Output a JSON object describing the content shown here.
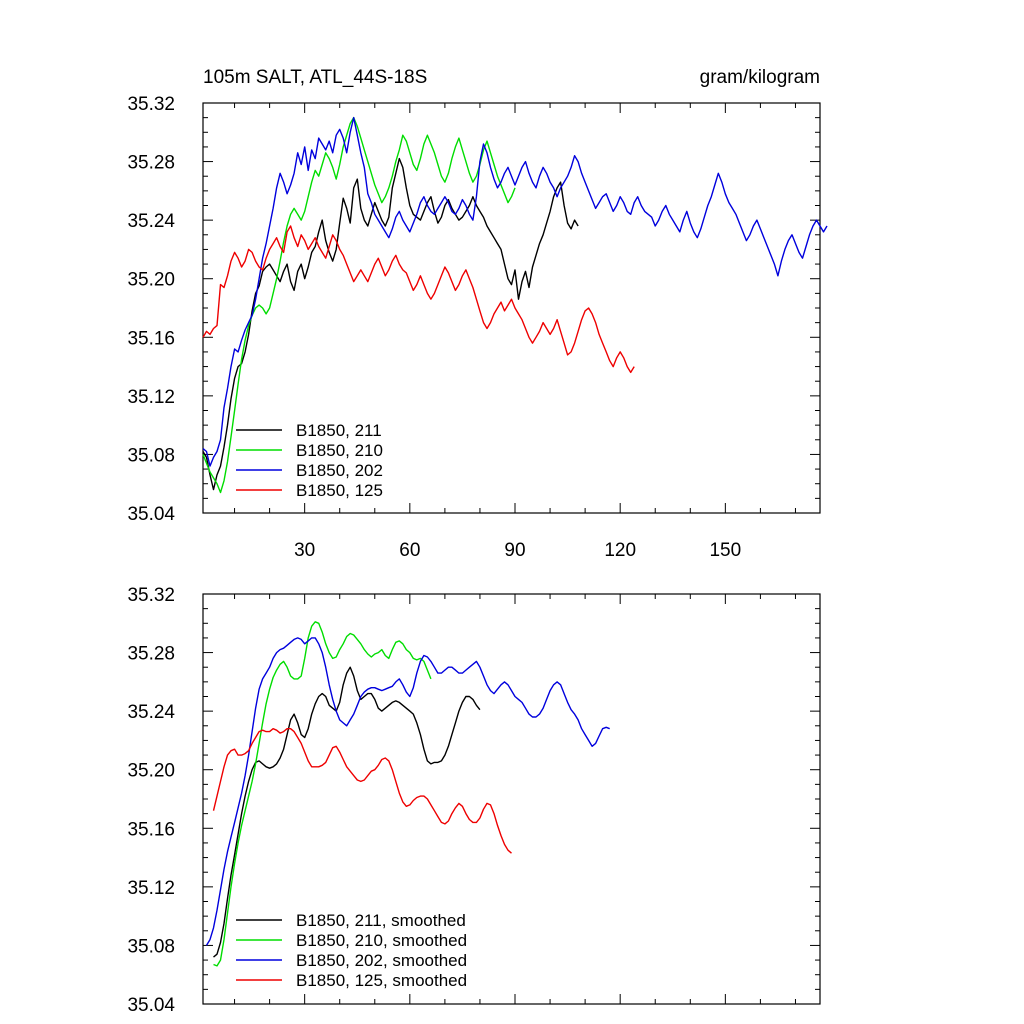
{
  "chart_data": [
    {
      "type": "line",
      "title": "105m SALT, ATL_44S-18S",
      "units": "gram/kilogram",
      "xlim": [
        1,
        177
      ],
      "ylim": [
        35.04,
        35.32
      ],
      "x_ticks": [
        30,
        60,
        90,
        120,
        150
      ],
      "x_tick_labels": [
        "30",
        "60",
        "90",
        "120",
        "150"
      ],
      "y_ticks": [
        35.04,
        35.08,
        35.12,
        35.16,
        35.2,
        35.24,
        35.28,
        35.32
      ],
      "y_tick_labels": [
        "35.04",
        "35.08",
        "35.12",
        "35.16",
        "35.20",
        "35.24",
        "35.28",
        "35.32"
      ],
      "legend_position": "bottom-left",
      "series": [
        {
          "name": "B1850, 211",
          "color": "#000000",
          "x_start": 1,
          "values": [
            35.082,
            35.078,
            35.066,
            35.056,
            35.066,
            35.072,
            35.085,
            35.1,
            35.118,
            35.132,
            35.14,
            35.142,
            35.15,
            35.162,
            35.178,
            35.19,
            35.195,
            35.205,
            35.208,
            35.21,
            35.206,
            35.202,
            35.198,
            35.205,
            35.21,
            35.198,
            35.192,
            35.205,
            35.21,
            35.2,
            35.208,
            35.218,
            35.222,
            35.232,
            35.24,
            35.226,
            35.218,
            35.212,
            35.22,
            35.238,
            35.255,
            35.248,
            35.238,
            35.262,
            35.268,
            35.248,
            35.24,
            35.236,
            35.244,
            35.252,
            35.246,
            35.24,
            35.236,
            35.242,
            35.262,
            35.272,
            35.282,
            35.276,
            35.262,
            35.25,
            35.244,
            35.242,
            35.24,
            35.246,
            35.252,
            35.256,
            35.246,
            35.238,
            35.242,
            35.25,
            35.254,
            35.248,
            35.244,
            35.24,
            35.242,
            35.246,
            35.25,
            35.256,
            35.25,
            35.246,
            35.242,
            35.236,
            35.232,
            35.228,
            35.224,
            35.22,
            35.21,
            35.2,
            35.196,
            35.206,
            35.186,
            35.198,
            35.205,
            35.194,
            35.208,
            35.216,
            35.224,
            35.23,
            35.238,
            35.246,
            35.256,
            35.262,
            35.266,
            35.25,
            35.238,
            35.234,
            35.24,
            35.236
          ]
        },
        {
          "name": "B1850, 210",
          "color": "#00dd00",
          "x_start": 1,
          "values": [
            35.08,
            35.074,
            35.068,
            35.064,
            35.06,
            35.054,
            35.062,
            35.075,
            35.092,
            35.11,
            35.128,
            35.145,
            35.158,
            35.168,
            35.175,
            35.18,
            35.182,
            35.18,
            35.176,
            35.18,
            35.19,
            35.2,
            35.212,
            35.225,
            35.236,
            35.244,
            35.248,
            35.244,
            35.24,
            35.246,
            35.256,
            35.266,
            35.274,
            35.27,
            35.278,
            35.286,
            35.282,
            35.276,
            35.268,
            35.278,
            35.29,
            35.298,
            35.306,
            35.31,
            35.304,
            35.296,
            35.288,
            35.28,
            35.272,
            35.264,
            35.258,
            35.252,
            35.256,
            35.262,
            35.27,
            35.28,
            35.288,
            35.298,
            35.294,
            35.286,
            35.278,
            35.274,
            35.282,
            35.292,
            35.298,
            35.292,
            35.286,
            35.278,
            35.27,
            35.266,
            35.272,
            35.282,
            35.29,
            35.296,
            35.288,
            35.28,
            35.272,
            35.266,
            35.27,
            35.278,
            35.288,
            35.294,
            35.286,
            35.278,
            35.27,
            35.264,
            35.258,
            35.252,
            35.256,
            35.262
          ]
        },
        {
          "name": "B1850, 202",
          "color": "#0000dd",
          "x_start": 1,
          "values": [
            35.084,
            35.082,
            35.072,
            35.078,
            35.082,
            35.09,
            35.112,
            35.125,
            35.14,
            35.152,
            35.15,
            35.158,
            35.165,
            35.17,
            35.175,
            35.186,
            35.2,
            35.214,
            35.224,
            35.236,
            35.248,
            35.262,
            35.272,
            35.266,
            35.258,
            35.264,
            35.272,
            35.286,
            35.278,
            35.29,
            35.274,
            35.288,
            35.282,
            35.296,
            35.292,
            35.288,
            35.294,
            35.286,
            35.298,
            35.302,
            35.296,
            35.286,
            35.3,
            35.31,
            35.298,
            35.286,
            35.276,
            35.258,
            35.252,
            35.244,
            35.24,
            35.236,
            35.232,
            35.228,
            35.234,
            35.242,
            35.246,
            35.24,
            35.236,
            35.232,
            35.238,
            35.244,
            35.252,
            35.256,
            35.25,
            35.246,
            35.244,
            35.248,
            35.252,
            35.256,
            35.252,
            35.246,
            35.244,
            35.248,
            35.254,
            35.25,
            35.244,
            35.24,
            35.256,
            35.28,
            35.292,
            35.286,
            35.276,
            35.268,
            35.262,
            35.266,
            35.272,
            35.276,
            35.27,
            35.264,
            35.27,
            35.276,
            35.28,
            35.272,
            35.266,
            35.262,
            35.27,
            35.276,
            35.272,
            35.266,
            35.262,
            35.256,
            35.262,
            35.266,
            35.27,
            35.276,
            35.284,
            35.28,
            35.272,
            35.266,
            35.26,
            35.254,
            35.248,
            35.252,
            35.256,
            35.258,
            35.252,
            35.246,
            35.25,
            35.256,
            35.252,
            35.246,
            35.244,
            35.252,
            35.256,
            35.25,
            35.246,
            35.244,
            35.242,
            35.236,
            35.24,
            35.246,
            35.25,
            35.244,
            35.24,
            35.236,
            35.232,
            35.24,
            35.246,
            35.238,
            35.232,
            35.228,
            35.234,
            35.242,
            35.25,
            35.256,
            35.264,
            35.272,
            35.266,
            35.258,
            35.252,
            35.248,
            35.244,
            35.238,
            35.232,
            35.226,
            35.23,
            35.236,
            35.24,
            35.234,
            35.228,
            35.222,
            35.216,
            35.21,
            35.202,
            35.212,
            35.22,
            35.226,
            35.23,
            35.224,
            35.218,
            35.214,
            35.222,
            35.23,
            35.236,
            35.24,
            35.236,
            35.232,
            35.236
          ]
        },
        {
          "name": "B1850, 125",
          "color": "#ee0000",
          "x_start": 1,
          "values": [
            35.16,
            35.164,
            35.162,
            35.166,
            35.168,
            35.196,
            35.194,
            35.202,
            35.212,
            35.218,
            35.214,
            35.208,
            35.212,
            35.22,
            35.218,
            35.212,
            35.208,
            35.206,
            35.214,
            35.22,
            35.224,
            35.228,
            35.222,
            35.218,
            35.232,
            35.236,
            35.228,
            35.222,
            35.23,
            35.226,
            35.22,
            35.224,
            35.228,
            35.222,
            35.218,
            35.214,
            35.222,
            35.23,
            35.226,
            35.22,
            35.216,
            35.21,
            35.204,
            35.198,
            35.202,
            35.206,
            35.202,
            35.198,
            35.204,
            35.21,
            35.214,
            35.208,
            35.202,
            35.206,
            35.212,
            35.216,
            35.21,
            35.206,
            35.204,
            35.198,
            35.192,
            35.196,
            35.202,
            35.196,
            35.19,
            35.186,
            35.19,
            35.196,
            35.202,
            35.208,
            35.204,
            35.198,
            35.192,
            35.196,
            35.202,
            35.206,
            35.2,
            35.194,
            35.186,
            35.178,
            35.17,
            35.166,
            35.17,
            35.176,
            35.18,
            35.184,
            35.178,
            35.182,
            35.186,
            35.18,
            35.176,
            35.172,
            35.166,
            35.16,
            35.156,
            35.16,
            35.164,
            35.17,
            35.166,
            35.162,
            35.166,
            35.172,
            35.164,
            35.156,
            35.148,
            35.15,
            35.156,
            35.164,
            35.172,
            35.178,
            35.18,
            35.176,
            35.17,
            35.162,
            35.156,
            35.15,
            35.144,
            35.14,
            35.146,
            35.15,
            35.146,
            35.14,
            35.136,
            35.14
          ]
        }
      ]
    },
    {
      "type": "line",
      "xlim": [
        1,
        177
      ],
      "ylim": [
        35.04,
        35.32
      ],
      "x_ticks": [
        30,
        60,
        90,
        120,
        150
      ],
      "y_ticks": [
        35.04,
        35.08,
        35.12,
        35.16,
        35.2,
        35.24,
        35.28,
        35.32
      ],
      "y_tick_labels": [
        "35.04",
        "35.08",
        "35.12",
        "35.16",
        "35.20",
        "35.24",
        "35.28",
        "35.32"
      ],
      "legend_position": "bottom-left",
      "series": [
        {
          "name": "B1850, 211, smoothed",
          "color": "#000000",
          "x_start": 4,
          "values": [
            35.072,
            35.074,
            35.082,
            35.095,
            35.112,
            35.128,
            35.142,
            35.156,
            35.17,
            35.182,
            35.192,
            35.2,
            35.205,
            35.206,
            35.204,
            35.202,
            35.201,
            35.202,
            35.204,
            35.208,
            35.214,
            35.224,
            35.234,
            35.238,
            35.232,
            35.224,
            35.222,
            35.228,
            35.238,
            35.245,
            35.25,
            35.252,
            35.25,
            35.244,
            35.242,
            35.24,
            35.246,
            35.258,
            35.266,
            35.27,
            35.264,
            35.254,
            35.248,
            35.25,
            35.252,
            35.252,
            35.248,
            35.242,
            35.24,
            35.242,
            35.244,
            35.246,
            35.247,
            35.246,
            35.244,
            35.242,
            35.24,
            35.238,
            35.232,
            35.224,
            35.214,
            35.206,
            35.204,
            35.205,
            35.205,
            35.206,
            35.21,
            35.216,
            35.224,
            35.232,
            35.24,
            35.246,
            35.25,
            35.25,
            35.248,
            35.244,
            35.241
          ]
        },
        {
          "name": "B1850, 210, smoothed",
          "color": "#00dd00",
          "x_start": 4,
          "values": [
            35.067,
            35.066,
            35.07,
            35.084,
            35.102,
            35.12,
            35.136,
            35.15,
            35.162,
            35.172,
            35.182,
            35.192,
            35.204,
            35.218,
            35.232,
            35.245,
            35.255,
            35.263,
            35.268,
            35.272,
            35.274,
            35.27,
            35.264,
            35.262,
            35.262,
            35.264,
            35.276,
            35.29,
            35.298,
            35.301,
            35.3,
            35.294,
            35.286,
            35.28,
            35.276,
            35.277,
            35.282,
            35.286,
            35.291,
            35.293,
            35.292,
            35.289,
            35.286,
            35.282,
            35.279,
            35.277,
            35.279,
            35.28,
            35.282,
            35.278,
            35.276,
            35.282,
            35.287,
            35.288,
            35.286,
            35.282,
            35.28,
            35.276,
            35.275,
            35.276,
            35.274,
            35.268,
            35.262
          ]
        },
        {
          "name": "B1850, 202, smoothed",
          "color": "#0000dd",
          "x_start": 2,
          "values": [
            35.08,
            35.084,
            35.092,
            35.104,
            35.118,
            35.132,
            35.144,
            35.154,
            35.164,
            35.174,
            35.184,
            35.196,
            35.21,
            35.226,
            35.242,
            35.255,
            35.262,
            35.266,
            35.27,
            35.276,
            35.28,
            35.282,
            35.283,
            35.285,
            35.287,
            35.289,
            35.29,
            35.289,
            35.286,
            35.288,
            35.29,
            35.29,
            35.286,
            35.28,
            35.27,
            35.258,
            35.248,
            35.24,
            35.234,
            35.232,
            35.23,
            35.234,
            35.238,
            35.244,
            35.25,
            35.253,
            35.255,
            35.256,
            35.256,
            35.255,
            35.254,
            35.255,
            35.256,
            35.257,
            35.26,
            35.262,
            35.258,
            35.253,
            35.25,
            35.256,
            35.266,
            35.274,
            35.278,
            35.277,
            35.274,
            35.27,
            35.266,
            35.266,
            35.268,
            35.27,
            35.27,
            35.268,
            35.266,
            35.266,
            35.268,
            35.27,
            35.272,
            35.274,
            35.27,
            35.264,
            35.258,
            35.254,
            35.252,
            35.255,
            35.258,
            35.26,
            35.258,
            35.254,
            35.25,
            35.248,
            35.246,
            35.242,
            35.238,
            35.236,
            35.236,
            35.238,
            35.242,
            35.248,
            35.254,
            35.258,
            35.26,
            35.258,
            35.252,
            35.246,
            35.241,
            35.238,
            35.234,
            35.228,
            35.224,
            35.22,
            35.216,
            35.218,
            35.223,
            35.228,
            35.229,
            35.228
          ]
        },
        {
          "name": "B1850, 125, smoothed",
          "color": "#ee0000",
          "x_start": 4,
          "values": [
            35.172,
            35.182,
            35.192,
            35.202,
            35.21,
            35.213,
            35.214,
            35.21,
            35.21,
            35.211,
            35.213,
            35.218,
            35.222,
            35.226,
            35.227,
            35.226,
            35.226,
            35.228,
            35.227,
            35.225,
            35.226,
            35.228,
            35.228,
            35.226,
            35.222,
            35.218,
            35.212,
            35.206,
            35.202,
            35.202,
            35.202,
            35.203,
            35.205,
            35.21,
            35.215,
            35.216,
            35.212,
            35.207,
            35.202,
            35.199,
            35.196,
            35.193,
            35.192,
            35.193,
            35.196,
            35.199,
            35.2,
            35.203,
            35.207,
            35.208,
            35.206,
            35.2,
            35.192,
            35.184,
            35.178,
            35.175,
            35.176,
            35.179,
            35.181,
            35.182,
            35.182,
            35.18,
            35.176,
            35.172,
            35.168,
            35.164,
            35.163,
            35.165,
            35.17,
            35.174,
            35.177,
            35.175,
            35.17,
            35.166,
            35.164,
            35.164,
            35.167,
            35.173,
            35.177,
            35.176,
            35.17,
            35.162,
            35.155,
            35.149,
            35.145,
            35.143
          ]
        }
      ]
    }
  ]
}
